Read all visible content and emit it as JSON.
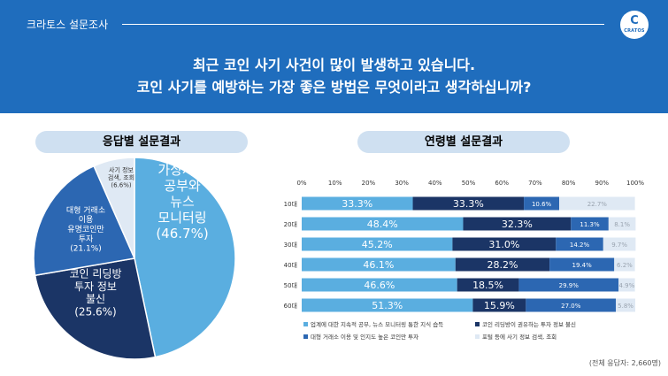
{
  "header": {
    "brand": "크라토스 설문조사",
    "logo_glyph": "C",
    "logo_text": "CRATOS",
    "question_line1": "최근 코인 사기 사건이 많이 발생하고 있습니다.",
    "question_line2": "코인 사기를 예방하는 가장 좋은 방법은 무엇이라고 생각하십니까?",
    "bg_color": "#1f6dbd"
  },
  "left_title": "응답별 설문결과",
  "right_title": "연령별 설문결과",
  "footnote": "(전체 응답자: 2,660명)",
  "chart_data": [
    {
      "type": "pie",
      "title": "응답별 설문결과",
      "slices": [
        {
          "label_lines": [
            "가상자산",
            "공부와",
            "뉴스",
            "모니터링",
            "(46.7%)"
          ],
          "value": 46.7,
          "color": "#5aaee0"
        },
        {
          "label_lines": [
            "코인 리딩방",
            "투자 정보",
            "불신",
            "(25.6%)"
          ],
          "value": 25.6,
          "color": "#1b3566"
        },
        {
          "label_lines": [
            "대형 거래소",
            "이용",
            "유명코인만",
            "투자",
            "(21.1%)"
          ],
          "value": 21.1,
          "color": "#2c67b2"
        },
        {
          "label_lines": [
            "사기 정보",
            "검색, 조회",
            "(6.6%)"
          ],
          "value": 6.6,
          "color": "#dfe9f4"
        }
      ]
    },
    {
      "type": "bar",
      "orientation": "horizontal-stacked",
      "title": "연령별 설문결과",
      "x_ticks": [
        "0%",
        "10%",
        "20%",
        "30%",
        "40%",
        "50%",
        "60%",
        "70%",
        "80%",
        "90%",
        "100%"
      ],
      "xlim": [
        0,
        100
      ],
      "categories": [
        "10대",
        "20대",
        "30대",
        "40대",
        "50대",
        "60대"
      ],
      "series": [
        {
          "name": "업계에 대한 지속적 공부, 뉴스 모니터링 통한 지식 습득",
          "color": "#5aaee0",
          "values": [
            33.3,
            48.4,
            45.2,
            46.1,
            46.6,
            51.3
          ],
          "labels": [
            "33.3%",
            "48.4%",
            "45.2%",
            "46.1%",
            "46.6%",
            "51.3%"
          ]
        },
        {
          "name": "코인 리딩방이 권유하는 투자 정보 불신",
          "color": "#1b3566",
          "values": [
            33.3,
            32.3,
            31.0,
            28.2,
            18.5,
            15.9
          ],
          "labels": [
            "33.3%",
            "32.3%",
            "31.0%",
            "28.2%",
            "18.5%",
            "15.9%"
          ]
        },
        {
          "name": "대형 거래소 이용 및 인지도 높은 코인만 투자",
          "color": "#2c67b2",
          "values": [
            10.6,
            11.3,
            14.2,
            19.4,
            29.9,
            27.0
          ],
          "labels": [
            "10.6%",
            "11.3%",
            "14.2%",
            "19.4%",
            "29.9%",
            "27.0%"
          ]
        },
        {
          "name": "포털 등에 사기 정보 검색, 조회",
          "color": "#dfe9f4",
          "values": [
            22.7,
            8.1,
            9.7,
            6.2,
            4.9,
            5.8
          ],
          "labels": [
            "22.7%",
            "8.1%",
            "9.7%",
            "6.2%",
            "4.9%",
            "5.8%"
          ]
        }
      ],
      "legend_placement": "bottom"
    }
  ]
}
